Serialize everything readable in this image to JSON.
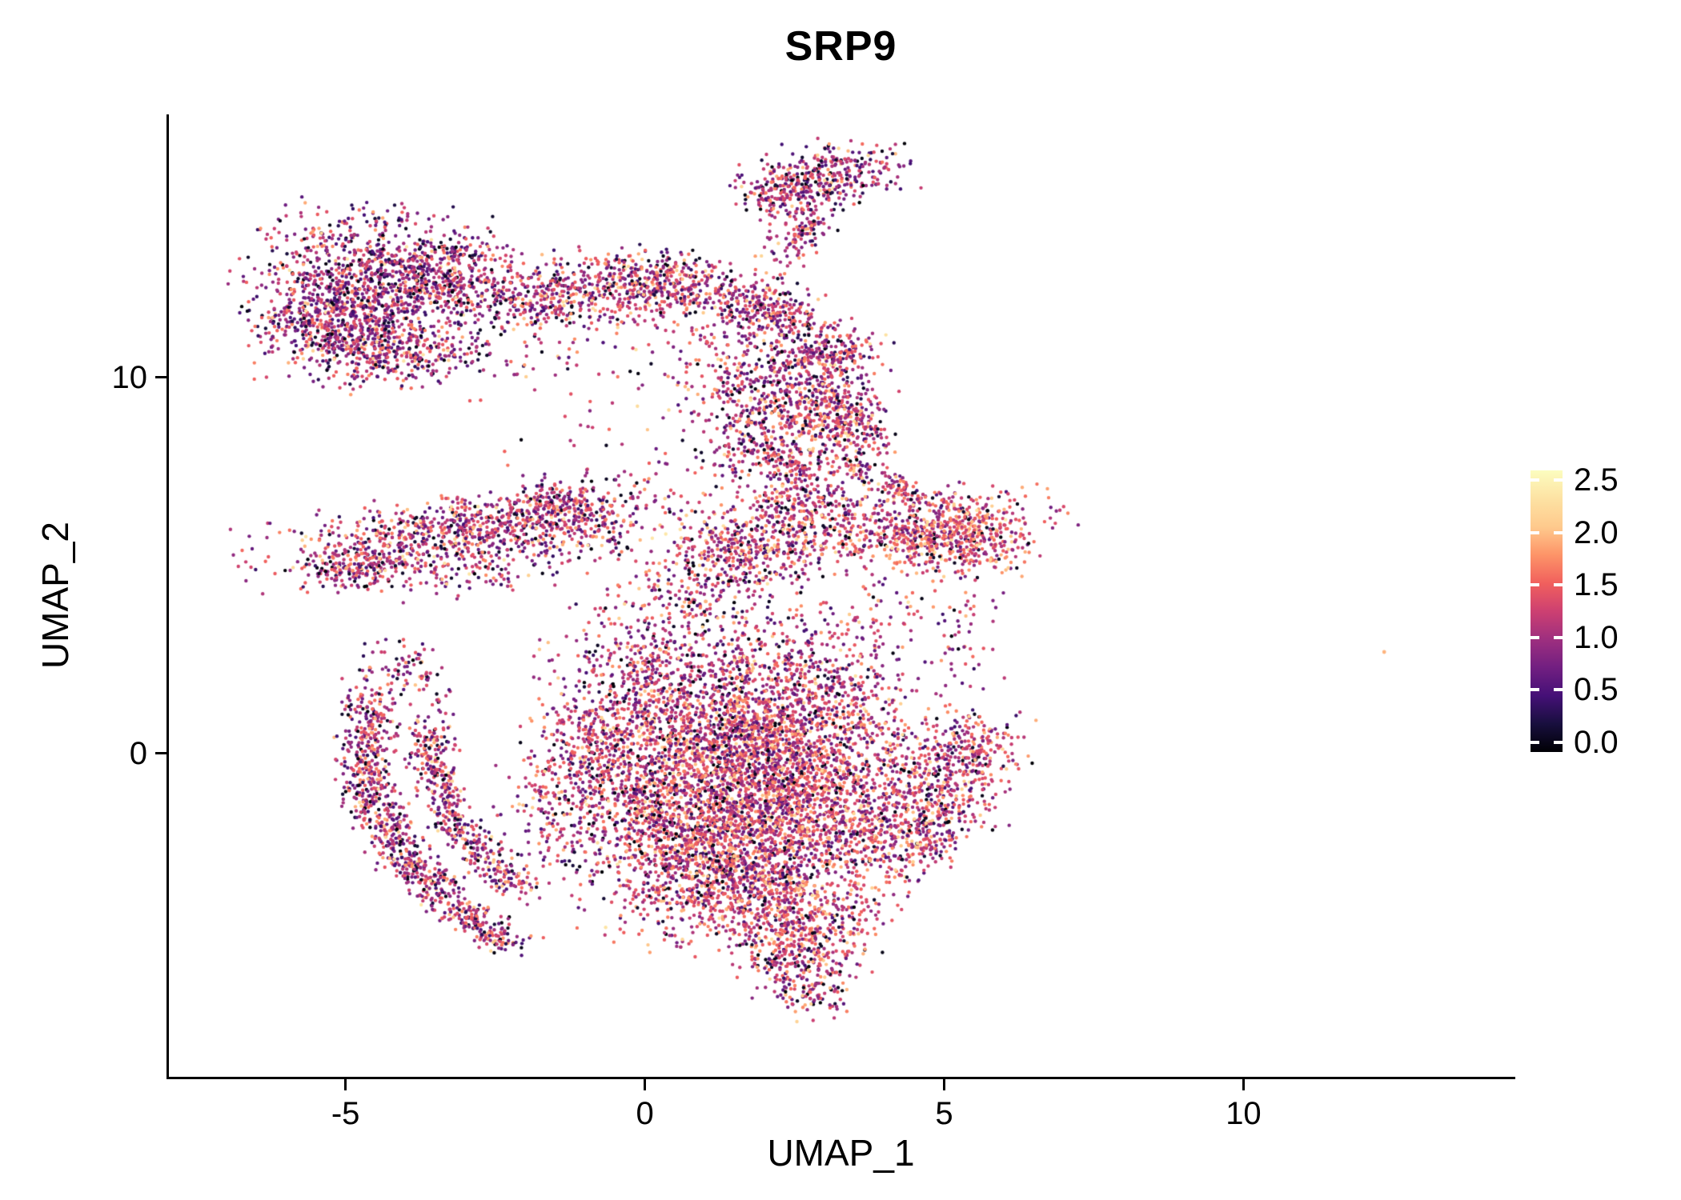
{
  "chart_data": {
    "type": "scatter",
    "title": "SRP9",
    "xlabel": "UMAP_1",
    "ylabel": "UMAP_2",
    "x_ticks": [
      -5,
      0,
      5,
      10
    ],
    "y_ticks": [
      0,
      10
    ],
    "xlim": [
      -7.95,
      14.5
    ],
    "ylim": [
      -8.6,
      17.0
    ],
    "grid": false,
    "background": "#ffffff",
    "axis_color": "#000000",
    "text_color": "#000000",
    "legend": {
      "position": "right",
      "colormap": "magma",
      "vmin": 0,
      "vmax": 2.5,
      "tick_values": [
        2.5,
        2.0,
        1.5,
        1.0,
        0.5,
        0.0
      ],
      "tick_labels": [
        "2.5",
        "2.0",
        "1.5",
        "1.0",
        "0.5",
        "0.0"
      ],
      "stops": [
        "#000004",
        "#180f3e",
        "#451077",
        "#721f81",
        "#9e2f7f",
        "#cd4071",
        "#f1605d",
        "#fd9468",
        "#feca8d",
        "#fde2a3",
        "#fcfdbf"
      ]
    },
    "points": {
      "seed": 20240917,
      "value_model": {
        "sd": 0.42,
        "zero_frac": 0.08,
        "high_frac": 0.045,
        "high_min": 1.75,
        "high_span": 0.55
      },
      "clusters": [
        {
          "cx": -4.6,
          "cy": 12.3,
          "sx": 0.95,
          "sy": 1.05,
          "rot": 0,
          "n": 1300,
          "vm": 1.0
        },
        {
          "cx": -5.35,
          "cy": 11.2,
          "sx": 0.5,
          "sy": 0.55,
          "rot": 40,
          "n": 260,
          "vm": 1.0
        },
        {
          "cx": -3.4,
          "cy": 12.9,
          "sx": 0.55,
          "sy": 0.4,
          "rot": 20,
          "n": 220,
          "vm": 1.0
        },
        {
          "cx": -4.0,
          "cy": 10.6,
          "sx": 0.6,
          "sy": 0.4,
          "rot": 10,
          "n": 180,
          "vm": 1.05
        },
        {
          "cx": -2.3,
          "cy": 12.1,
          "sx": 0.6,
          "sy": 0.4,
          "rot": -15,
          "n": 160,
          "vm": 1.1
        },
        {
          "cx": -0.9,
          "cy": 12.35,
          "sx": 0.8,
          "sy": 0.5,
          "rot": 5,
          "n": 430,
          "vm": 1.1
        },
        {
          "cx": 0.35,
          "cy": 12.55,
          "sx": 0.5,
          "sy": 0.4,
          "rot": 0,
          "n": 200,
          "vm": 1.1
        },
        {
          "cx": 1.3,
          "cy": 12.2,
          "sx": 0.5,
          "sy": 0.35,
          "rot": -20,
          "n": 150,
          "vm": 1.1
        },
        {
          "cx": 2.0,
          "cy": 11.9,
          "sx": 0.4,
          "sy": 0.3,
          "rot": -40,
          "n": 100,
          "vm": 1.1
        },
        {
          "cx": 2.5,
          "cy": 15.1,
          "sx": 0.45,
          "sy": 0.35,
          "rot": 10,
          "n": 170,
          "vm": 1.05
        },
        {
          "cx": 3.3,
          "cy": 15.5,
          "sx": 0.55,
          "sy": 0.38,
          "rot": 10,
          "n": 210,
          "vm": 1.05
        },
        {
          "cx": 2.65,
          "cy": 13.9,
          "sx": 0.25,
          "sy": 0.55,
          "rot": -25,
          "n": 130,
          "vm": 1.05
        },
        {
          "cx": 2.1,
          "cy": 14.7,
          "sx": 0.3,
          "sy": 0.25,
          "rot": 0,
          "n": 70,
          "vm": 1.05
        },
        {
          "cx": 2.35,
          "cy": 9.5,
          "sx": 0.8,
          "sy": 0.9,
          "rot": 0,
          "n": 520,
          "vm": 1.1
        },
        {
          "cx": 3.0,
          "cy": 10.5,
          "sx": 0.5,
          "sy": 0.35,
          "rot": 30,
          "n": 200,
          "vm": 1.1
        },
        {
          "cx": 2.05,
          "cy": 8.2,
          "sx": 0.5,
          "sy": 0.6,
          "rot": 0,
          "n": 200,
          "vm": 1.1
        },
        {
          "cx": 2.45,
          "cy": 11.5,
          "sx": 0.3,
          "sy": 0.6,
          "rot": 10,
          "n": 130,
          "vm": 1.1
        },
        {
          "cx": 3.15,
          "cy": 9.1,
          "sx": 0.4,
          "sy": 0.5,
          "rot": 0,
          "n": 150,
          "vm": 1.1
        },
        {
          "cx": 1.35,
          "cy": 11.0,
          "sx": 0.5,
          "sy": 0.45,
          "rot": 0,
          "n": 80,
          "vm": 1.1
        },
        {
          "cx": 3.5,
          "cy": 8.6,
          "sx": 0.25,
          "sy": 0.45,
          "rot": 35,
          "n": 90,
          "vm": 1.15
        },
        {
          "cx": 2.5,
          "cy": 7.3,
          "sx": 0.4,
          "sy": 0.4,
          "rot": 0,
          "n": 110,
          "vm": 1.15
        },
        {
          "cx": 3.85,
          "cy": 7.3,
          "sx": 0.6,
          "sy": 0.18,
          "rot": -40,
          "n": 140,
          "vm": 1.2
        },
        {
          "cx": -3.2,
          "cy": 5.85,
          "sx": 1.5,
          "sy": 0.5,
          "rot": 14,
          "n": 850,
          "vm": 1.1
        },
        {
          "cx": -4.75,
          "cy": 4.95,
          "sx": 0.45,
          "sy": 0.3,
          "rot": 20,
          "n": 140,
          "vm": 1.1
        },
        {
          "cx": -1.6,
          "cy": 6.5,
          "sx": 0.55,
          "sy": 0.35,
          "rot": 15,
          "n": 200,
          "vm": 1.1
        },
        {
          "cx": -2.6,
          "cy": 4.8,
          "sx": 0.8,
          "sy": 0.3,
          "rot": 10,
          "n": 90,
          "vm": 1.1
        },
        {
          "cx": -0.7,
          "cy": 6.0,
          "sx": 0.4,
          "sy": 0.5,
          "rot": 0,
          "n": 80,
          "vm": 1.15
        },
        {
          "cx": 3.6,
          "cy": 5.9,
          "sx": 1.5,
          "sy": 0.5,
          "rot": 8,
          "n": 650,
          "vm": 1.25
        },
        {
          "cx": 5.15,
          "cy": 5.75,
          "sx": 0.55,
          "sy": 0.5,
          "rot": 0,
          "n": 430,
          "vm": 1.45
        },
        {
          "cx": 1.6,
          "cy": 5.3,
          "sx": 0.7,
          "sy": 0.5,
          "rot": 10,
          "n": 260,
          "vm": 1.2
        },
        {
          "cx": 2.75,
          "cy": 6.6,
          "sx": 0.5,
          "sy": 0.3,
          "rot": 10,
          "n": 120,
          "vm": 1.2
        },
        {
          "cx": 5.35,
          "cy": 3.0,
          "sx": 0.3,
          "sy": 1.0,
          "rot": 0,
          "n": 50,
          "vm": 1.2
        },
        {
          "cx": 0.9,
          "cy": 0.7,
          "sx": 1.1,
          "sy": 1.0,
          "rot": 0,
          "n": 850,
          "vm": 1.2
        },
        {
          "cx": 2.2,
          "cy": 0.4,
          "sx": 1.0,
          "sy": 1.0,
          "rot": 0,
          "n": 850,
          "vm": 1.2
        },
        {
          "cx": 0.3,
          "cy": -1.2,
          "sx": 1.0,
          "sy": 1.0,
          "rot": 0,
          "n": 900,
          "vm": 1.2
        },
        {
          "cx": 1.8,
          "cy": -1.9,
          "sx": 1.1,
          "sy": 1.0,
          "rot": 0,
          "n": 950,
          "vm": 1.25
        },
        {
          "cx": 3.0,
          "cy": -1.0,
          "sx": 0.9,
          "sy": 0.9,
          "rot": 0,
          "n": 650,
          "vm": 1.2
        },
        {
          "cx": 1.0,
          "cy": -3.3,
          "sx": 0.9,
          "sy": 0.8,
          "rot": 0,
          "n": 650,
          "vm": 1.25
        },
        {
          "cx": 2.3,
          "cy": -3.9,
          "sx": 0.8,
          "sy": 0.8,
          "rot": 0,
          "n": 550,
          "vm": 1.25
        },
        {
          "cx": 2.6,
          "cy": -5.3,
          "sx": 0.5,
          "sy": 0.55,
          "rot": 0,
          "n": 280,
          "vm": 1.2
        },
        {
          "cx": 2.75,
          "cy": -6.3,
          "sx": 0.3,
          "sy": 0.35,
          "rot": 0,
          "n": 90,
          "vm": 1.2
        },
        {
          "cx": 0.0,
          "cy": 2.3,
          "sx": 0.8,
          "sy": 0.8,
          "rot": 0,
          "n": 300,
          "vm": 1.15
        },
        {
          "cx": 2.0,
          "cy": 2.7,
          "sx": 0.9,
          "sy": 0.7,
          "rot": 0,
          "n": 280,
          "vm": 1.15
        },
        {
          "cx": -0.8,
          "cy": 0.1,
          "sx": 0.5,
          "sy": 0.9,
          "rot": 0,
          "n": 240,
          "vm": 1.15
        },
        {
          "cx": 3.9,
          "cy": -2.3,
          "sx": 0.55,
          "sy": 0.7,
          "rot": 0,
          "n": 220,
          "vm": 1.2
        },
        {
          "cx": 3.3,
          "cy": 1.5,
          "sx": 0.6,
          "sy": 0.8,
          "rot": 0,
          "n": 180,
          "vm": 1.15
        },
        {
          "cx": 0.9,
          "cy": 4.1,
          "sx": 0.9,
          "sy": 0.45,
          "rot": 5,
          "n": 140,
          "vm": 1.15
        },
        {
          "cx": 5.0,
          "cy": -0.8,
          "sx": 0.55,
          "sy": 0.85,
          "rot": -10,
          "n": 400,
          "vm": 1.2
        },
        {
          "cx": 5.5,
          "cy": 0.2,
          "sx": 0.35,
          "sy": 0.45,
          "rot": 0,
          "n": 130,
          "vm": 1.2
        },
        {
          "cx": 4.65,
          "cy": -2.3,
          "sx": 0.3,
          "sy": 0.4,
          "rot": 0,
          "n": 90,
          "vm": 1.2
        },
        {
          "cx": -4.55,
          "cy": 0.9,
          "sx": 0.2,
          "sy": 0.55,
          "rot": 5,
          "n": 140,
          "vm": 1.1
        },
        {
          "cx": -4.7,
          "cy": -0.5,
          "sx": 0.22,
          "sy": 0.65,
          "rot": 0,
          "n": 190,
          "vm": 1.1
        },
        {
          "cx": -4.3,
          "cy": -1.9,
          "sx": 0.22,
          "sy": 0.6,
          "rot": 14,
          "n": 180,
          "vm": 1.1
        },
        {
          "cx": -3.75,
          "cy": -3.1,
          "sx": 0.22,
          "sy": 0.55,
          "rot": 35,
          "n": 170,
          "vm": 1.1
        },
        {
          "cx": -3.05,
          "cy": -4.2,
          "sx": 0.2,
          "sy": 0.5,
          "rot": 50,
          "n": 140,
          "vm": 1.1
        },
        {
          "cx": -2.55,
          "cy": -4.85,
          "sx": 0.18,
          "sy": 0.35,
          "rot": 57,
          "n": 80,
          "vm": 1.1
        },
        {
          "cx": -3.55,
          "cy": 0.2,
          "sx": 0.2,
          "sy": 0.5,
          "rot": 0,
          "n": 120,
          "vm": 1.1
        },
        {
          "cx": -3.35,
          "cy": -1.1,
          "sx": 0.2,
          "sy": 0.55,
          "rot": 12,
          "n": 150,
          "vm": 1.1
        },
        {
          "cx": -2.85,
          "cy": -2.4,
          "sx": 0.2,
          "sy": 0.5,
          "rot": 35,
          "n": 130,
          "vm": 1.1
        },
        {
          "cx": -2.35,
          "cy": -3.3,
          "sx": 0.18,
          "sy": 0.35,
          "rot": 48,
          "n": 80,
          "vm": 1.1
        },
        {
          "cx": -3.9,
          "cy": 2.2,
          "sx": 0.35,
          "sy": 0.55,
          "rot": 20,
          "n": 90,
          "vm": 1.1
        },
        {
          "cx": -1.6,
          "cy": -1.5,
          "sx": 0.45,
          "sy": 1.0,
          "rot": 0,
          "n": 110,
          "vm": 1.15
        },
        {
          "cx": 0.2,
          "cy": 8.8,
          "sx": 1.3,
          "sy": 1.2,
          "rot": 0,
          "n": 60,
          "vm": 1.1
        },
        {
          "cx": -1.5,
          "cy": 10.6,
          "sx": 1.0,
          "sy": 0.7,
          "rot": 0,
          "n": 60,
          "vm": 1.1
        },
        {
          "cx": 4.1,
          "cy": 3.6,
          "sx": 0.6,
          "sy": 0.7,
          "rot": 0,
          "n": 70,
          "vm": 1.2
        },
        {
          "cx": 0.8,
          "cy": 6.6,
          "sx": 0.6,
          "sy": 0.5,
          "rot": 0,
          "n": 60,
          "vm": 1.15
        }
      ],
      "outliers": [
        {
          "x": 12.35,
          "y": 2.7,
          "v": 1.9
        }
      ]
    }
  }
}
